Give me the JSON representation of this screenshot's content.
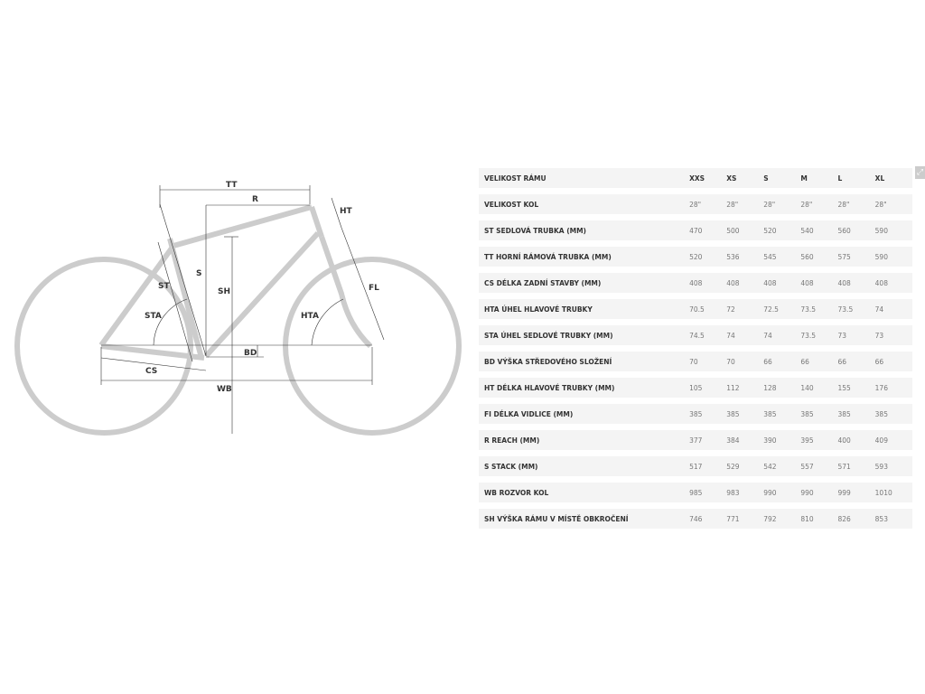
{
  "diagram": {
    "labels": {
      "TT": "TT",
      "R": "R",
      "HT": "HT",
      "ST": "ST",
      "S": "S",
      "SH": "SH",
      "STA": "STA",
      "HTA": "HTA",
      "FL": "FL",
      "BD": "BD",
      "CS": "CS",
      "WB": "WB"
    },
    "frame_color": "#cccccc"
  },
  "table": {
    "header": {
      "label": "VELIKOST RÁMU",
      "sizes": [
        "XXS",
        "XS",
        "S",
        "M",
        "L",
        "XL"
      ]
    },
    "rows": [
      {
        "label": "VELIKOST KOL",
        "values": [
          "28\"",
          "28\"",
          "28\"",
          "28\"",
          "28\"",
          "28\""
        ]
      },
      {
        "label": "ST SEDLOVÁ TRUBKA (MM)",
        "values": [
          "470",
          "500",
          "520",
          "540",
          "560",
          "590"
        ]
      },
      {
        "label": "TT HORNÍ RÁMOVÁ TRUBKA (MM)",
        "values": [
          "520",
          "536",
          "545",
          "560",
          "575",
          "590"
        ]
      },
      {
        "label": "CS DÉLKA ZADNÍ STAVBY (MM)",
        "values": [
          "408",
          "408",
          "408",
          "408",
          "408",
          "408"
        ]
      },
      {
        "label": "HTA ÚHEL HLAVOVÉ TRUBKY",
        "values": [
          "70.5",
          "72",
          "72.5",
          "73.5",
          "73.5",
          "74"
        ]
      },
      {
        "label": "STA ÚHEL SEDLOVÉ TRUBKY (MM)",
        "values": [
          "74.5",
          "74",
          "74",
          "73.5",
          "73",
          "73"
        ]
      },
      {
        "label": "BD VÝŠKA STŘEDOVÉHO SLOŽENÍ",
        "values": [
          "70",
          "70",
          "66",
          "66",
          "66",
          "66"
        ]
      },
      {
        "label": "HT DÉLKA HLAVOVÉ TRUBKY (MM)",
        "values": [
          "105",
          "112",
          "128",
          "140",
          "155",
          "176"
        ]
      },
      {
        "label": "FI DÉLKA VIDLICE (MM)",
        "values": [
          "385",
          "385",
          "385",
          "385",
          "385",
          "385"
        ]
      },
      {
        "label": "R REACH (MM)",
        "values": [
          "377",
          "384",
          "390",
          "395",
          "400",
          "409"
        ]
      },
      {
        "label": "S STACK (MM)",
        "values": [
          "517",
          "529",
          "542",
          "557",
          "571",
          "593"
        ]
      },
      {
        "label": "WB ROZVOR KOL",
        "values": [
          "985",
          "983",
          "990",
          "990",
          "999",
          "1010"
        ]
      },
      {
        "label": "SH VÝŠKA RÁMU V MÍSTĚ OBKROČENÍ",
        "values": [
          "746",
          "771",
          "792",
          "810",
          "826",
          "853"
        ]
      }
    ]
  },
  "expand_icon": "expand-icon"
}
